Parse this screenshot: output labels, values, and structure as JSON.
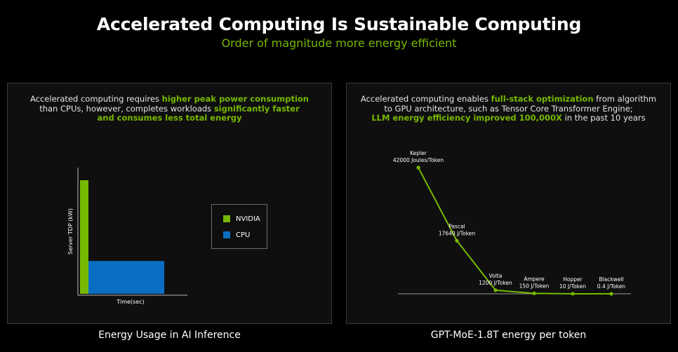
{
  "header": {
    "title": "Accelerated Computing Is Sustainable Computing",
    "subtitle": "Order of magnitude more energy efficient"
  },
  "left": {
    "desc_line1_a": "Accelerated computing requires ",
    "desc_line1_b": "higher peak power consumption",
    "desc_line2_a": "than CPUs, however, completes workloads ",
    "desc_line2_b": "significantly faster",
    "desc_line3": "and consumes less total energy",
    "caption": "Energy Usage in AI Inference"
  },
  "right": {
    "desc_line1_a": "Accelerated computing enables ",
    "desc_line1_b": "full-stack optimization",
    "desc_line1_c": " from algorithm",
    "desc_line2": "to GPU architecture, such as Tensor Core Transformer Engine;",
    "desc_line3_a": "LLM energy efficiency improved 100,000X",
    "desc_line3_b": " in the past 10 years",
    "caption": "GPT-MoE-1.8T energy per token"
  },
  "colors": {
    "accent": "#76b900",
    "cpu": "#0a6fc2"
  },
  "chart_data": [
    {
      "type": "bar",
      "xlabel": "Time(sec)",
      "ylabel": "Server TDP (kW)",
      "legend_position": "right",
      "series": [
        {
          "name": "NVIDIA",
          "color": "#76b900",
          "height": 0.9,
          "duration": 0.08
        },
        {
          "name": "CPU",
          "color": "#0a6fc2",
          "height": 0.26,
          "duration": 0.72
        }
      ]
    },
    {
      "type": "line",
      "color": "#76b900",
      "points": [
        {
          "name": "Kepler",
          "value_label": "42000 Joules/Token",
          "value": 42000
        },
        {
          "name": "Pascal",
          "value_label": "17640 J/Token",
          "value": 17640
        },
        {
          "name": "Volta",
          "value_label": "1200 J/Token",
          "value": 1200
        },
        {
          "name": "Ampere",
          "value_label": "150 J/Token",
          "value": 150
        },
        {
          "name": "Hopper",
          "value_label": "10 J/Token",
          "value": 10
        },
        {
          "name": "Blackwell",
          "value_label": "0.4 J/Token",
          "value": 0.4
        }
      ],
      "ylim": [
        0,
        42000
      ]
    }
  ]
}
